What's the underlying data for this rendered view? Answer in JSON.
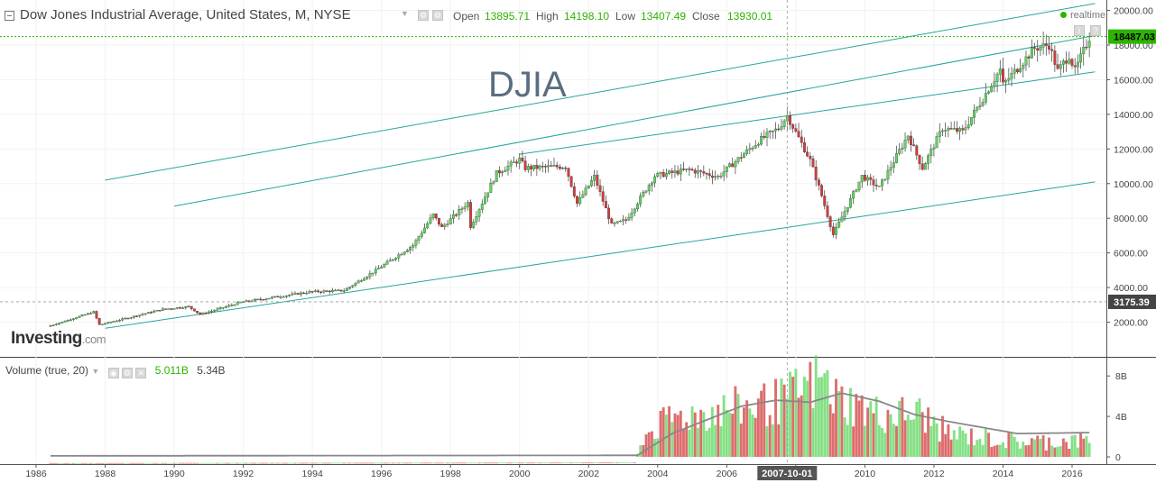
{
  "header": {
    "title": "Dow Jones Industrial Average, United States, M, NYSE",
    "open_label": "Open",
    "open_value": "13895.71",
    "high_label": "High",
    "high_value": "14198.10",
    "low_label": "Low",
    "low_value": "13407.49",
    "close_label": "Close",
    "close_value": "13930.01",
    "realtime_label": "realtime"
  },
  "watermark": "DJIA",
  "logo": {
    "name": "Investing",
    "suffix": ".com"
  },
  "volume_panel": {
    "label": "Volume (true, 20)",
    "value1": "5.011B",
    "value2": "5.34B"
  },
  "crosshair": {
    "date_label": "2007-10-01",
    "price_label": "3175.39",
    "last_price_label": "18487.03"
  },
  "colors": {
    "up": "#5cd65c",
    "down": "#d23c3c",
    "channel": "#26a69a",
    "ma": "#888888",
    "price_line": "#2db400"
  },
  "chart_data": {
    "type": "candlestick",
    "frequency": "monthly",
    "x_ticks": [
      "1986",
      "1988",
      "1990",
      "1992",
      "1994",
      "1996",
      "1998",
      "2000",
      "2002",
      "2004",
      "2006",
      "2008",
      "2010",
      "2012",
      "2014",
      "2016"
    ],
    "price_axis": {
      "ticks": [
        "2000.00",
        "4000.00",
        "6000.00",
        "8000.00",
        "10000.00",
        "12000.00",
        "14000.00",
        "16000.00",
        "18000.00",
        "20000.00"
      ],
      "range": [
        0,
        20600
      ]
    },
    "volume_axis": {
      "ticks": [
        "0",
        "4B",
        "8B"
      ],
      "range": [
        0,
        10.6
      ]
    },
    "price_anchors": [
      [
        "1986-06",
        1800
      ],
      [
        "1987-09",
        2600
      ],
      [
        "1987-11",
        1850
      ],
      [
        "1989-09",
        2750
      ],
      [
        "1990-06",
        2900
      ],
      [
        "1990-10",
        2450
      ],
      [
        "1991-12",
        3150
      ],
      [
        "1993-12",
        3750
      ],
      [
        "1994-12",
        3830
      ],
      [
        "1995-12",
        5100
      ],
      [
        "1996-12",
        6450
      ],
      [
        "1997-07",
        8200
      ],
      [
        "1997-10",
        7450
      ],
      [
        "1998-07",
        8900
      ],
      [
        "1998-08",
        7550
      ],
      [
        "1999-05",
        10600
      ],
      [
        "2000-01",
        11400
      ],
      [
        "2000-03",
        10900
      ],
      [
        "2001-05",
        11000
      ],
      [
        "2001-09",
        8850
      ],
      [
        "2002-03",
        10400
      ],
      [
        "2002-09",
        7600
      ],
      [
        "2003-02",
        7900
      ],
      [
        "2003-12",
        10450
      ],
      [
        "2004-12",
        10800
      ],
      [
        "2005-10",
        10400
      ],
      [
        "2006-12",
        12450
      ],
      [
        "2007-07",
        13200
      ],
      [
        "2007-10",
        13930
      ],
      [
        "2008-06",
        11350
      ],
      [
        "2008-10",
        9300
      ],
      [
        "2009-02",
        7050
      ],
      [
        "2009-12",
        10430
      ],
      [
        "2010-06",
        9770
      ],
      [
        "2011-04",
        12800
      ],
      [
        "2011-09",
        10900
      ],
      [
        "2012-04",
        13200
      ],
      [
        "2012-11",
        13000
      ],
      [
        "2013-12",
        16580
      ],
      [
        "2014-01",
        15700
      ],
      [
        "2014-12",
        17820
      ],
      [
        "2015-05",
        18010
      ],
      [
        "2015-08",
        16500
      ],
      [
        "2015-12",
        17420
      ],
      [
        "2016-02",
        16500
      ],
      [
        "2016-07",
        18432
      ]
    ],
    "volume_anchors": [
      [
        "1986-06",
        0.1
      ],
      [
        "2003-05",
        0.15
      ],
      [
        "2003-08",
        2.7
      ],
      [
        "2004-06",
        4.6
      ],
      [
        "2006-06",
        5.6
      ],
      [
        "2007-08",
        6.2
      ],
      [
        "2008-10",
        8.4
      ],
      [
        "2009-03",
        6.5
      ],
      [
        "2010-06",
        4.9
      ],
      [
        "2011-08",
        5.0
      ],
      [
        "2012-06",
        3.0
      ],
      [
        "2014-06",
        2.2
      ],
      [
        "2016-07",
        2.3
      ]
    ],
    "volume_ma_anchors": [
      [
        "1986-06",
        0.1
      ],
      [
        "2003-06",
        0.15
      ],
      [
        "2004-06",
        2.3
      ],
      [
        "2006-06",
        5.0
      ],
      [
        "2007-06",
        5.6
      ],
      [
        "2008-06",
        5.4
      ],
      [
        "2009-05",
        6.3
      ],
      [
        "2010-06",
        5.5
      ],
      [
        "2011-06",
        4.2
      ],
      [
        "2012-06",
        3.5
      ],
      [
        "2014-06",
        2.3
      ],
      [
        "2016-07",
        2.4
      ]
    ],
    "trend_lines": [
      {
        "from": [
          "1988-01",
          10200
        ],
        "to": [
          "2016-09",
          20400
        ]
      },
      {
        "from": [
          "1990-01",
          8700
        ],
        "to": [
          "2016-09",
          18550
        ]
      },
      {
        "from": [
          "1988-01",
          1650
        ],
        "to": [
          "2016-09",
          10100
        ]
      },
      {
        "from": [
          "2000-01",
          11700
        ],
        "to": [
          "2016-09",
          16450
        ]
      }
    ]
  }
}
